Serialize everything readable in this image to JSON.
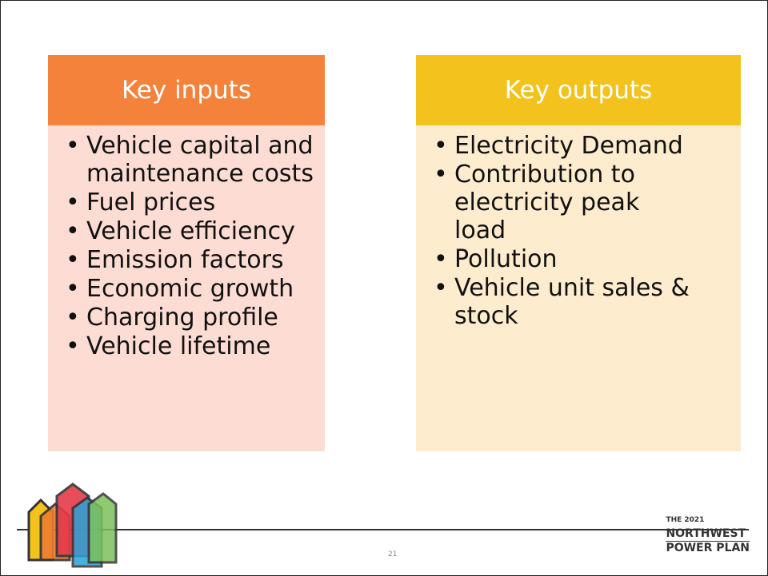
{
  "inputs": {
    "title": "Key inputs",
    "items": [
      "Vehicle capital and maintenance costs",
      "Fuel prices",
      "Vehicle efficiency",
      "Emission factors",
      "Economic growth",
      "Charging profile",
      "Vehicle lifetime"
    ]
  },
  "outputs": {
    "title": "Key outputs",
    "items": [
      "Electricity Demand",
      "Contribution to electricity peak load",
      "Pollution",
      "Vehicle unit sales & stock"
    ]
  },
  "page_number": "21",
  "brand": [
    "THE 2021",
    "NORTHWEST",
    "POWER PLAN"
  ]
}
